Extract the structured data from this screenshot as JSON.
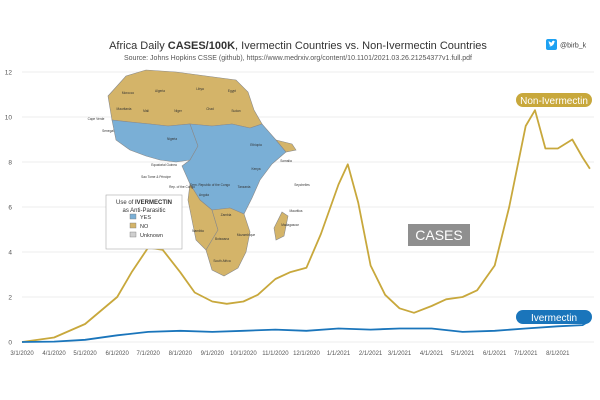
{
  "chart_data": {
    "type": "line",
    "title_prefix": "Africa Daily ",
    "title_strong": "CASES/100K",
    "title_suffix": ", Ivermectin Countries vs. Non-Ivermectin Countries",
    "subtitle": "Source: Johns Hopkins CSSE (github), https://www.medrxiv.org/content/10.1101/2021.03.26.21254377v1.full.pdf",
    "handle": "@birb_k",
    "x_ticks": [
      "3/1/2020",
      "4/1/2020",
      "5/1/2020",
      "6/1/2020",
      "7/1/2020",
      "8/1/2020",
      "9/1/2020",
      "10/1/2020",
      "11/1/2020",
      "12/1/2020",
      "1/1/2021",
      "2/1/2021",
      "3/1/2021",
      "4/1/2021",
      "5/1/2021",
      "6/1/2021",
      "7/1/2021",
      "8/1/2021"
    ],
    "ylim": [
      0,
      12
    ],
    "y_ticks": [
      0,
      2,
      4,
      6,
      8,
      10,
      12
    ],
    "annotation": "CASES",
    "series": [
      {
        "name": "Non-Ivermectin",
        "color": "#c8a83c",
        "x": [
          "3/1/2020",
          "4/1/2020",
          "5/1/2020",
          "6/1/2020",
          "6/15/2020",
          "7/1/2020",
          "7/15/2020",
          "8/1/2020",
          "8/15/2020",
          "9/1/2020",
          "9/15/2020",
          "10/1/2020",
          "10/15/2020",
          "11/1/2020",
          "11/15/2020",
          "12/1/2020",
          "12/15/2020",
          "1/1/2021",
          "1/10/2021",
          "1/20/2021",
          "2/1/2021",
          "2/15/2021",
          "3/1/2021",
          "3/15/2021",
          "4/1/2021",
          "4/15/2021",
          "5/1/2021",
          "5/15/2021",
          "6/1/2021",
          "6/15/2021",
          "7/1/2021",
          "7/10/2021",
          "7/20/2021",
          "8/1/2021",
          "8/15/2021",
          "8/25/2021",
          "9/1/2021"
        ],
        "y": [
          0,
          0.2,
          0.8,
          2.0,
          3.1,
          4.2,
          4.1,
          3.1,
          2.2,
          1.8,
          1.7,
          1.8,
          2.1,
          2.8,
          3.1,
          3.3,
          4.8,
          7.0,
          7.9,
          6.2,
          3.4,
          2.1,
          1.5,
          1.3,
          1.6,
          1.9,
          2.0,
          2.3,
          3.4,
          6.0,
          9.6,
          10.3,
          8.6,
          8.6,
          9.0,
          8.2,
          7.7
        ]
      },
      {
        "name": "Ivermectin",
        "color": "#1a75bb",
        "x": [
          "3/1/2020",
          "4/1/2020",
          "5/1/2020",
          "6/1/2020",
          "7/1/2020",
          "8/1/2020",
          "9/1/2020",
          "10/1/2020",
          "11/1/2020",
          "12/1/2020",
          "1/1/2021",
          "2/1/2021",
          "3/1/2021",
          "4/1/2021",
          "5/1/2021",
          "6/1/2021",
          "7/1/2021",
          "8/1/2021",
          "8/25/2021",
          "9/1/2021"
        ],
        "y": [
          0,
          0.02,
          0.1,
          0.3,
          0.45,
          0.5,
          0.45,
          0.5,
          0.55,
          0.5,
          0.6,
          0.55,
          0.6,
          0.6,
          0.45,
          0.5,
          0.6,
          0.7,
          0.75,
          0.95
        ]
      }
    ]
  },
  "map_legend": {
    "heading_prefix": "Use of ",
    "heading_strong": "IVERMECTIN",
    "heading_line2": "as Anti-Parasitic",
    "items": [
      {
        "label": "YES",
        "color": "#7aafd6"
      },
      {
        "label": "NO",
        "color": "#d4b469"
      },
      {
        "label": "Unknown",
        "color": "#cfcfcf"
      }
    ]
  },
  "map_country_labels": [
    "Morocco",
    "Algeria",
    "Libya",
    "Egypt",
    "Mali",
    "Niger",
    "Chad",
    "Sudan",
    "Nigeria",
    "Ethiopia",
    "Kenya",
    "Tanzania",
    "Angola",
    "Zambia",
    "Namibia",
    "Botswana",
    "South Africa",
    "Madagascar",
    "Mozambique",
    "Mauritania",
    "Cape Verde",
    "Senegal",
    "Somalia",
    "Seychelles",
    "Mauritius",
    "Sao Tome & Principe",
    "Equatorial Guinea",
    "Rep. of the Congo",
    "Dem. Republic of the Congo"
  ]
}
